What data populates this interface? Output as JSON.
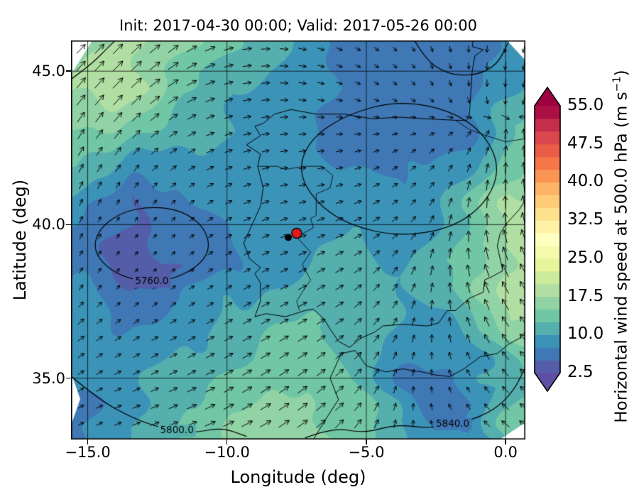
{
  "chart_data": {
    "type": "heatmap",
    "title": "Init: 2017-04-30 00:00; Valid: 2017-05-26 00:00",
    "xlabel": "Longitude (deg)",
    "ylabel": "Latitude (deg)",
    "xlim": [
      -15.6,
      0.71
    ],
    "ylim": [
      33.0,
      46.0
    ],
    "grid_on": true,
    "xticks": {
      "values": [
        -15,
        -10,
        -5,
        0
      ],
      "labels": [
        "−15.0",
        "−10.0",
        "−5.0",
        "0.0"
      ]
    },
    "yticks": {
      "values": [
        35,
        40,
        45
      ],
      "labels": [
        "35.0",
        "40.0",
        "45.0"
      ]
    },
    "colorbar": {
      "label_prefix": "Horizontal wind speed at 500.0 hPa (m s",
      "label_sup": "−1",
      "label_suffix": ")",
      "vmin": 2.5,
      "vmax": 55.0,
      "band_step": 2.5,
      "ticks": [
        2.5,
        10.0,
        17.5,
        25.0,
        32.5,
        40.0,
        47.5,
        55.0
      ],
      "tick_labels": [
        "2.5",
        "10.0",
        "17.5",
        "25.0",
        "32.5",
        "40.0",
        "47.5",
        "55.0"
      ],
      "extend": "both",
      "colormap_stops": [
        "#5e4fa2",
        "#3288bd",
        "#66c2a5",
        "#abdda4",
        "#e6f598",
        "#ffffbf",
        "#fee08b",
        "#fdae61",
        "#f46d43",
        "#d53e4f",
        "#9e0142"
      ]
    },
    "wind_grid": {
      "lons": [
        -15.5,
        -13.5,
        -11.5,
        -9.5,
        -7.5,
        -5.5,
        -3.5,
        -1.5,
        0.5
      ],
      "lats": [
        33.0,
        34.5,
        36.5,
        38.5,
        40.5,
        42.5,
        44.5,
        46.5
      ],
      "speed_ms": [
        [
          6,
          10,
          14,
          16,
          17,
          15,
          9,
          8,
          14
        ],
        [
          7,
          9,
          12,
          14,
          15,
          13,
          7,
          6,
          12
        ],
        [
          10,
          8,
          9,
          12,
          13,
          12,
          9,
          10,
          16
        ],
        [
          7,
          4,
          5,
          8,
          10,
          11,
          10,
          14,
          20
        ],
        [
          8,
          5,
          6,
          9,
          8,
          9,
          8,
          12,
          18
        ],
        [
          13,
          12,
          10,
          9,
          8,
          7,
          6,
          8,
          14
        ],
        [
          18,
          19,
          14,
          10,
          9,
          6,
          5,
          6,
          10
        ],
        [
          14,
          18,
          16,
          12,
          10,
          7,
          6,
          7,
          8
        ]
      ],
      "dir_deg_toward": [
        [
          25,
          20,
          20,
          25,
          35,
          50,
          90,
          130,
          150
        ],
        [
          30,
          25,
          25,
          30,
          35,
          45,
          80,
          120,
          140
        ],
        [
          40,
          35,
          30,
          30,
          30,
          40,
          70,
          110,
          130
        ],
        [
          60,
          50,
          35,
          30,
          25,
          30,
          60,
          100,
          120
        ],
        [
          70,
          60,
          40,
          25,
          15,
          20,
          45,
          80,
          100
        ],
        [
          60,
          50,
          30,
          15,
          5,
          10,
          30,
          60,
          90
        ],
        [
          50,
          45,
          30,
          10,
          -5,
          -20,
          -45,
          -80,
          -100
        ],
        [
          45,
          45,
          35,
          10,
          -10,
          -30,
          -60,
          -90,
          -110
        ]
      ]
    },
    "geopotential_contours": [
      {
        "label": "5760.0",
        "label_pos": [
          -12.7,
          38.14
        ],
        "closed": true,
        "points": [
          [
            -10.6,
            39.3
          ],
          [
            -10.85,
            39.95
          ],
          [
            -11.6,
            40.45
          ],
          [
            -12.7,
            40.6
          ],
          [
            -13.8,
            40.4
          ],
          [
            -14.55,
            39.9
          ],
          [
            -14.8,
            39.3
          ],
          [
            -14.5,
            38.75
          ],
          [
            -13.75,
            38.3
          ],
          [
            -12.7,
            38.1
          ],
          [
            -11.7,
            38.3
          ],
          [
            -10.9,
            38.75
          ]
        ]
      },
      {
        "label": "",
        "label_pos": [
          0,
          0
        ],
        "closed": true,
        "points": [
          [
            -0.2,
            41.8
          ],
          [
            -0.7,
            42.9
          ],
          [
            -1.9,
            43.7
          ],
          [
            -3.8,
            44.05
          ],
          [
            -5.7,
            43.6
          ],
          [
            -7.0,
            42.8
          ],
          [
            -7.45,
            41.8
          ],
          [
            -6.9,
            40.8
          ],
          [
            -5.7,
            40.0
          ],
          [
            -3.8,
            39.6
          ],
          [
            -1.9,
            39.9
          ],
          [
            -0.7,
            40.7
          ]
        ]
      },
      {
        "label": "",
        "label_pos": [
          0,
          0
        ],
        "closed": false,
        "points": [
          [
            -15.65,
            44.7
          ],
          [
            -14.9,
            45.2
          ],
          [
            -14.35,
            45.7
          ],
          [
            -13.9,
            46.1
          ]
        ]
      },
      {
        "label": "5800.0",
        "label_pos": [
          -11.8,
          33.28
        ],
        "closed": false,
        "points": [
          [
            -15.65,
            35.1
          ],
          [
            -14.6,
            34.3
          ],
          [
            -13.4,
            33.7
          ],
          [
            -12.3,
            33.35
          ],
          [
            -11.2,
            33.2
          ],
          [
            -10.2,
            33.4
          ],
          [
            -9.3,
            33.1
          ]
        ]
      },
      {
        "label": "5840.0",
        "label_pos": [
          -1.9,
          33.5
        ],
        "closed": false,
        "points": [
          [
            -7.2,
            33.05
          ],
          [
            -6.2,
            33.4
          ],
          [
            -5.1,
            33.2
          ],
          [
            -3.9,
            33.5
          ],
          [
            -2.7,
            33.35
          ],
          [
            -1.5,
            33.55
          ],
          [
            -0.4,
            33.95
          ],
          [
            0.3,
            34.6
          ],
          [
            0.68,
            35.3
          ]
        ]
      },
      {
        "label": "",
        "label_pos": [
          0,
          0
        ],
        "closed": false,
        "points": [
          [
            -3.3,
            46.05
          ],
          [
            -2.9,
            45.4
          ],
          [
            -2.1,
            44.9
          ],
          [
            -1.1,
            44.85
          ],
          [
            -0.3,
            45.2
          ],
          [
            0.1,
            45.95
          ]
        ]
      }
    ],
    "marker": {
      "lon": -7.5,
      "lat": 39.72,
      "color": "#e31a1c",
      "edge": "#000000"
    },
    "marker2": {
      "lon": -7.8,
      "lat": 39.58,
      "color": "#000000"
    }
  },
  "map_overlay": {
    "coastlines": [
      [
        [
          -1.8,
          43.4
        ],
        [
          -2.9,
          43.45
        ],
        [
          -3.8,
          43.5
        ],
        [
          -4.8,
          43.45
        ],
        [
          -5.8,
          43.6
        ],
        [
          -6.8,
          43.6
        ],
        [
          -7.7,
          43.75
        ],
        [
          -8.3,
          43.6
        ],
        [
          -8.7,
          43.3
        ],
        [
          -9.0,
          43.2
        ],
        [
          -8.8,
          42.9
        ],
        [
          -9.3,
          42.6
        ],
        [
          -8.8,
          42.3
        ],
        [
          -8.9,
          41.9
        ],
        [
          -8.7,
          41.2
        ],
        [
          -8.8,
          40.6
        ],
        [
          -9.0,
          40.2
        ],
        [
          -9.4,
          39.4
        ],
        [
          -9.2,
          38.9
        ],
        [
          -8.8,
          38.6
        ],
        [
          -9.0,
          38.4
        ],
        [
          -8.8,
          38.1
        ],
        [
          -8.8,
          37.5
        ],
        [
          -9.0,
          37.0
        ],
        [
          -8.6,
          37.1
        ],
        [
          -7.9,
          37.0
        ],
        [
          -7.2,
          37.2
        ],
        [
          -6.9,
          37.25
        ],
        [
          -6.5,
          36.9
        ],
        [
          -6.3,
          36.6
        ],
        [
          -6.0,
          36.2
        ],
        [
          -5.6,
          36.0
        ],
        [
          -5.4,
          36.15
        ],
        [
          -5.2,
          36.3
        ],
        [
          -4.7,
          36.5
        ],
        [
          -4.4,
          36.7
        ],
        [
          -3.7,
          36.75
        ],
        [
          -2.8,
          36.7
        ],
        [
          -2.4,
          36.8
        ],
        [
          -2.1,
          37.2
        ],
        [
          -1.8,
          37.2
        ],
        [
          -1.3,
          37.6
        ],
        [
          -0.8,
          37.8
        ],
        [
          -0.75,
          38.2
        ],
        [
          -0.5,
          38.3
        ],
        [
          -0.1,
          38.5
        ],
        [
          -0.3,
          39.3
        ],
        [
          -0.2,
          39.7
        ],
        [
          0.0,
          40.0
        ],
        [
          0.5,
          40.5
        ],
        [
          0.7,
          40.8
        ]
      ],
      [
        [
          -1.8,
          43.4
        ],
        [
          -1.4,
          43.4
        ],
        [
          -1.3,
          43.6
        ],
        [
          -1.25,
          44.3
        ],
        [
          -1.2,
          45.0
        ],
        [
          -1.1,
          45.5
        ],
        [
          -0.8,
          45.7
        ],
        [
          -1.2,
          45.8
        ],
        [
          -1.1,
          46.3
        ],
        [
          -1.4,
          46.5
        ]
      ],
      [
        [
          -6.9,
          33.0
        ],
        [
          -6.5,
          33.6
        ],
        [
          -6.0,
          34.3
        ],
        [
          -6.3,
          35.0
        ],
        [
          -5.9,
          35.8
        ],
        [
          -5.4,
          35.9
        ],
        [
          -5.0,
          35.4
        ],
        [
          -4.3,
          35.2
        ],
        [
          -3.7,
          35.3
        ],
        [
          -3.0,
          35.2
        ],
        [
          -2.5,
          35.1
        ],
        [
          -2.0,
          35.05
        ],
        [
          -1.5,
          35.3
        ],
        [
          -0.9,
          35.7
        ],
        [
          -0.3,
          35.8
        ],
        [
          0.1,
          36.1
        ],
        [
          0.5,
          36.3
        ],
        [
          0.7,
          36.5
        ]
      ]
    ],
    "borders": [
      [
        [
          -8.9,
          41.9
        ],
        [
          -8.2,
          41.9
        ],
        [
          -7.9,
          41.8
        ],
        [
          -7.2,
          41.9
        ],
        [
          -6.6,
          41.9
        ],
        [
          -6.2,
          41.6
        ],
        [
          -6.3,
          41.2
        ],
        [
          -6.8,
          41.0
        ],
        [
          -6.8,
          40.3
        ],
        [
          -7.0,
          40.2
        ],
        [
          -6.9,
          39.9
        ],
        [
          -7.3,
          39.7
        ],
        [
          -7.5,
          39.6
        ],
        [
          -7.0,
          39.1
        ],
        [
          -7.3,
          38.7
        ],
        [
          -7.0,
          38.2
        ],
        [
          -7.3,
          37.8
        ],
        [
          -7.5,
          37.5
        ],
        [
          -7.4,
          37.2
        ]
      ],
      [
        [
          -1.8,
          43.4
        ],
        [
          -1.3,
          43.1
        ],
        [
          -0.7,
          42.9
        ],
        [
          0.0,
          42.7
        ],
        [
          0.7,
          42.8
        ]
      ]
    ]
  }
}
